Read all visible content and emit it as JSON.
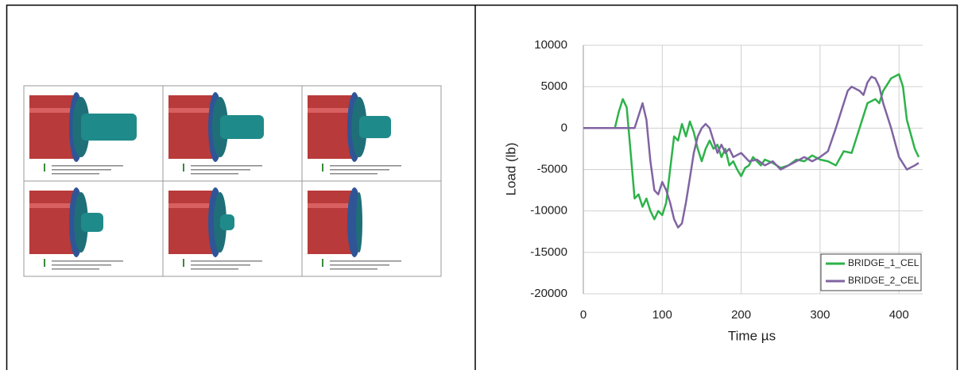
{
  "chart_data": {
    "type": "line",
    "x_label": "Time µs",
    "y_label": "Load (lb)",
    "xlim": [
      0,
      430
    ],
    "xticks": [
      0,
      100,
      200,
      300,
      400
    ],
    "ylim": [
      -20000,
      10000
    ],
    "yticks": [
      -20000,
      -15000,
      -10000,
      -5000,
      0,
      5000,
      10000
    ],
    "grid": true,
    "legend": "lower right",
    "series": [
      {
        "name": "BRIDGE_1_CEL",
        "color": "#2db34a",
        "x": [
          0,
          40,
          45,
          50,
          55,
          60,
          65,
          70,
          75,
          80,
          85,
          90,
          95,
          100,
          105,
          110,
          115,
          120,
          125,
          130,
          135,
          140,
          145,
          150,
          155,
          160,
          165,
          170,
          175,
          180,
          185,
          190,
          195,
          200,
          205,
          210,
          215,
          220,
          225,
          230,
          240,
          250,
          260,
          270,
          280,
          290,
          300,
          310,
          320,
          330,
          340,
          350,
          360,
          370,
          375,
          380,
          390,
          400,
          405,
          410,
          420,
          425
        ],
        "values": [
          0,
          0,
          2000,
          3500,
          2500,
          -3000,
          -8500,
          -8000,
          -9500,
          -8500,
          -10000,
          -11000,
          -10000,
          -10500,
          -9000,
          -5000,
          -1000,
          -1500,
          500,
          -1000,
          800,
          -500,
          -2500,
          -4000,
          -2500,
          -1500,
          -2500,
          -2000,
          -3500,
          -2500,
          -4500,
          -4000,
          -5000,
          -5800,
          -4800,
          -4500,
          -3500,
          -4000,
          -4500,
          -3800,
          -4200,
          -4800,
          -4500,
          -3800,
          -4000,
          -3300,
          -3800,
          -4000,
          -4500,
          -2800,
          -3000,
          0,
          3000,
          3500,
          3000,
          4500,
          6000,
          6500,
          5000,
          1000,
          -2500,
          -3500
        ]
      },
      {
        "name": "BRIDGE_2_CEL",
        "color": "#8064a2",
        "x": [
          0,
          65,
          70,
          75,
          80,
          85,
          90,
          95,
          100,
          105,
          110,
          115,
          120,
          125,
          130,
          135,
          140,
          145,
          150,
          155,
          160,
          165,
          170,
          175,
          180,
          185,
          190,
          200,
          210,
          220,
          230,
          240,
          250,
          260,
          270,
          280,
          290,
          300,
          310,
          320,
          330,
          335,
          340,
          350,
          355,
          360,
          365,
          370,
          375,
          380,
          390,
          400,
          410,
          420,
          425
        ],
        "values": [
          0,
          0,
          1500,
          3000,
          1000,
          -4000,
          -7500,
          -8000,
          -6500,
          -7500,
          -9000,
          -11000,
          -12000,
          -11500,
          -9000,
          -6000,
          -3000,
          -1000,
          0,
          500,
          0,
          -1500,
          -3000,
          -2000,
          -3000,
          -2500,
          -3500,
          -3000,
          -4000,
          -3800,
          -4500,
          -4000,
          -5000,
          -4500,
          -4000,
          -3500,
          -4000,
          -3500,
          -2800,
          0,
          3000,
          4500,
          5000,
          4500,
          4000,
          5500,
          6200,
          6000,
          5000,
          3000,
          0,
          -3500,
          -5000,
          -4500,
          -4200
        ]
      }
    ]
  }
}
